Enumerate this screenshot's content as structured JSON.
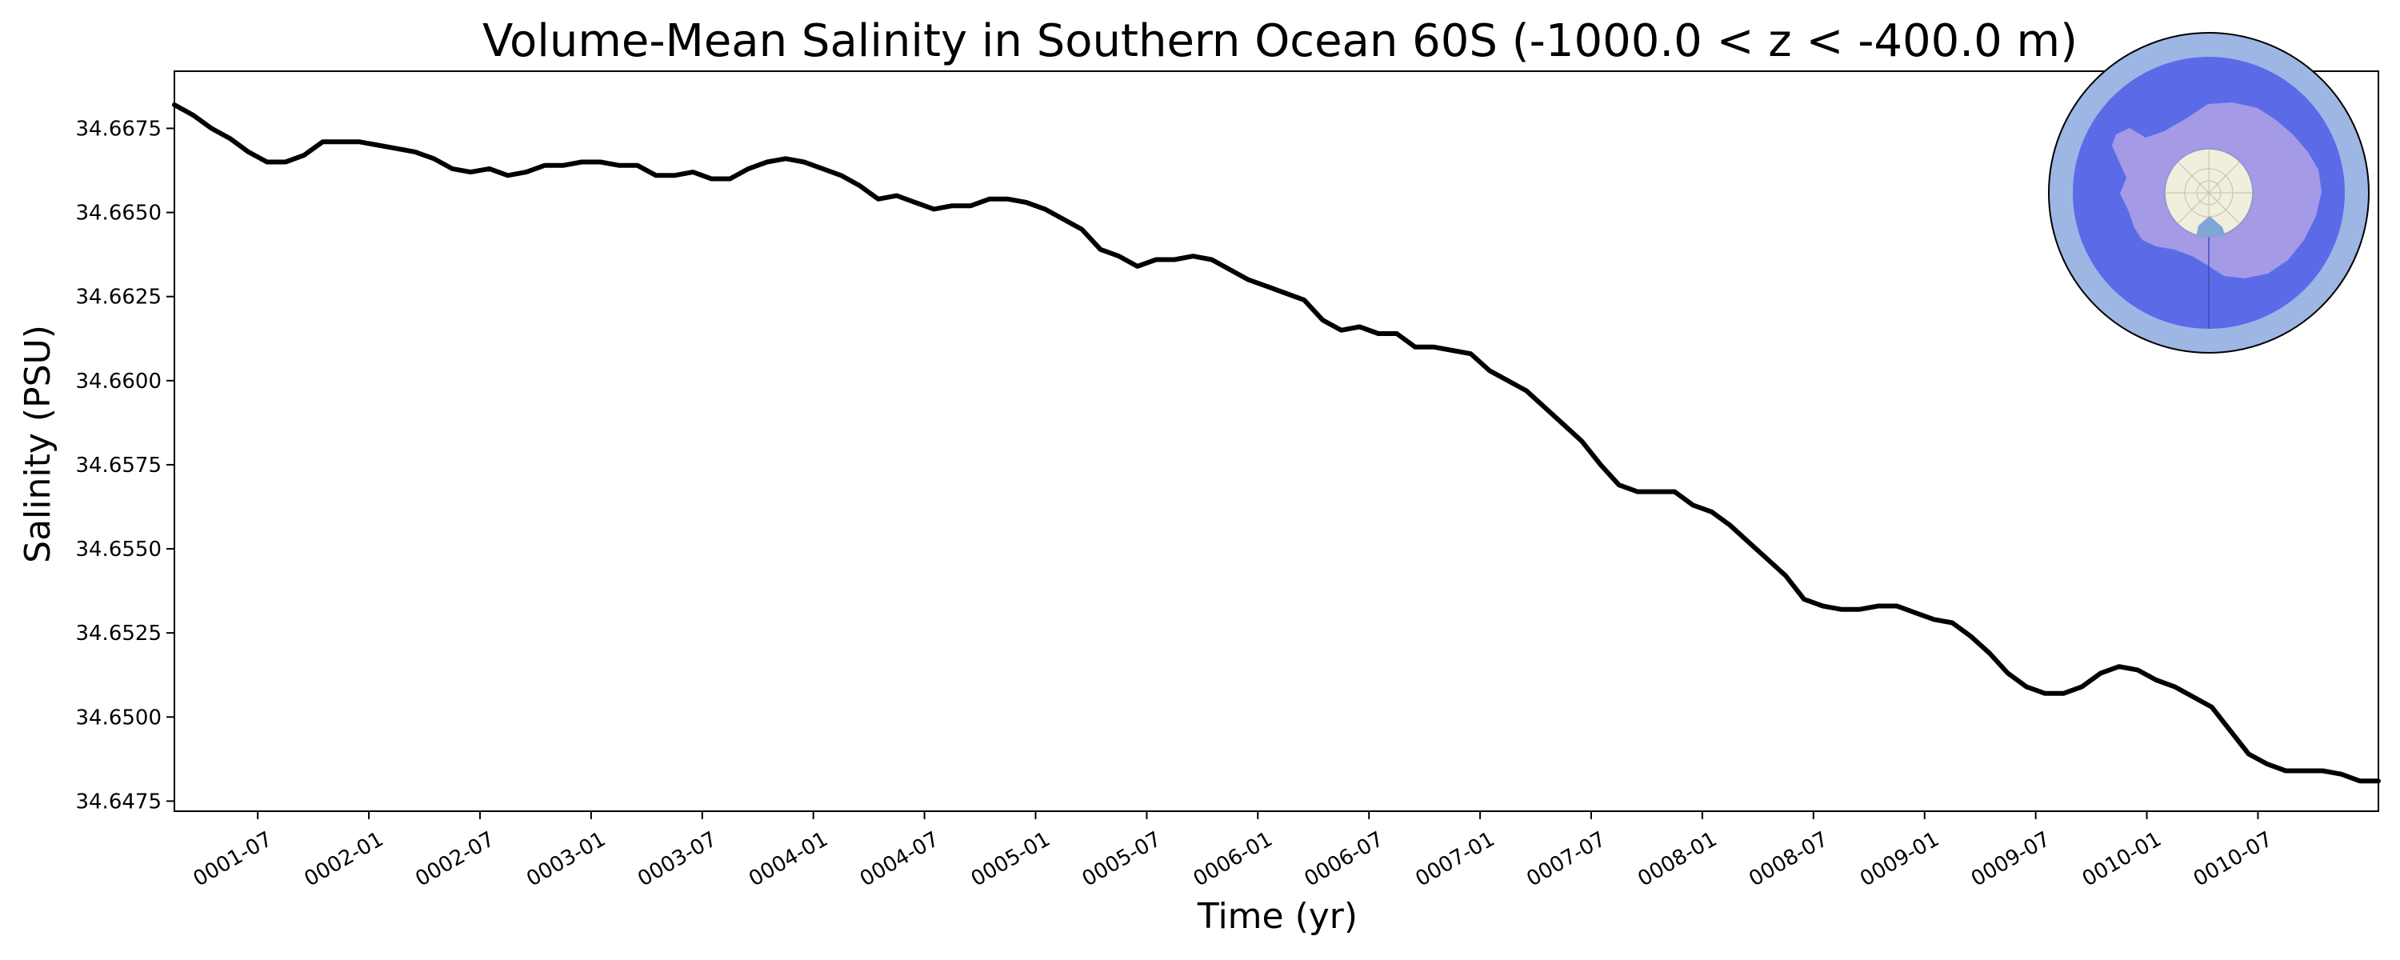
{
  "chart_data": {
    "type": "line",
    "title": "Volume-Mean Salinity in Southern Ocean 60S (-1000.0 < z < -400.0 m)",
    "xlabel": "Time (yr)",
    "ylabel": "Salinity (PSU)",
    "xlim": [
      0.125,
      10.042
    ],
    "ylim": [
      34.6472,
      34.6692
    ],
    "grid": false,
    "x_ticks": [
      {
        "value": 0.5,
        "label": "0001-07"
      },
      {
        "value": 1.0,
        "label": "0002-01"
      },
      {
        "value": 1.5,
        "label": "0002-07"
      },
      {
        "value": 2.0,
        "label": "0003-01"
      },
      {
        "value": 2.5,
        "label": "0003-07"
      },
      {
        "value": 3.0,
        "label": "0004-01"
      },
      {
        "value": 3.5,
        "label": "0004-07"
      },
      {
        "value": 4.0,
        "label": "0005-01"
      },
      {
        "value": 4.5,
        "label": "0005-07"
      },
      {
        "value": 5.0,
        "label": "0006-01"
      },
      {
        "value": 5.5,
        "label": "0006-07"
      },
      {
        "value": 6.0,
        "label": "0007-01"
      },
      {
        "value": 6.5,
        "label": "0007-07"
      },
      {
        "value": 7.0,
        "label": "0008-01"
      },
      {
        "value": 7.5,
        "label": "0008-07"
      },
      {
        "value": 8.0,
        "label": "0009-01"
      },
      {
        "value": 8.5,
        "label": "0009-07"
      },
      {
        "value": 9.0,
        "label": "0010-01"
      },
      {
        "value": 9.5,
        "label": "0010-07"
      }
    ],
    "y_ticks": [
      {
        "value": 34.6475,
        "label": "34.6475"
      },
      {
        "value": 34.65,
        "label": "34.6500"
      },
      {
        "value": 34.6525,
        "label": "34.6525"
      },
      {
        "value": 34.655,
        "label": "34.6550"
      },
      {
        "value": 34.6575,
        "label": "34.6575"
      },
      {
        "value": 34.66,
        "label": "34.6600"
      },
      {
        "value": 34.6625,
        "label": "34.6625"
      },
      {
        "value": 34.665,
        "label": "34.6650"
      },
      {
        "value": 34.6675,
        "label": "34.6675"
      }
    ],
    "series": [
      {
        "color": "#000000",
        "x": [
          0.125,
          0.208,
          0.292,
          0.375,
          0.458,
          0.542,
          0.625,
          0.708,
          0.792,
          0.875,
          0.958,
          1.042,
          1.125,
          1.208,
          1.292,
          1.375,
          1.458,
          1.542,
          1.625,
          1.708,
          1.792,
          1.875,
          1.958,
          2.042,
          2.125,
          2.208,
          2.292,
          2.375,
          2.458,
          2.542,
          2.625,
          2.708,
          2.792,
          2.875,
          2.958,
          3.042,
          3.125,
          3.208,
          3.292,
          3.375,
          3.458,
          3.542,
          3.625,
          3.708,
          3.792,
          3.875,
          3.958,
          4.042,
          4.125,
          4.208,
          4.292,
          4.375,
          4.458,
          4.542,
          4.625,
          4.708,
          4.792,
          4.875,
          4.958,
          5.042,
          5.125,
          5.208,
          5.292,
          5.375,
          5.458,
          5.542,
          5.625,
          5.708,
          5.792,
          5.875,
          5.958,
          6.042,
          6.125,
          6.208,
          6.292,
          6.375,
          6.458,
          6.542,
          6.625,
          6.708,
          6.792,
          6.875,
          6.958,
          7.042,
          7.125,
          7.208,
          7.292,
          7.375,
          7.458,
          7.542,
          7.625,
          7.708,
          7.792,
          7.875,
          7.958,
          8.042,
          8.125,
          8.208,
          8.292,
          8.375,
          8.458,
          8.542,
          8.625,
          8.708,
          8.792,
          8.875,
          8.958,
          9.042,
          9.125,
          9.208,
          9.292,
          9.375,
          9.458,
          9.542,
          9.625,
          9.708,
          9.792,
          9.875,
          9.958,
          10.042
        ],
        "y": [
          34.6682,
          34.6679,
          34.6675,
          34.6672,
          34.6668,
          34.6665,
          34.6665,
          34.6667,
          34.6671,
          34.6671,
          34.6671,
          34.667,
          34.6669,
          34.6668,
          34.6666,
          34.6663,
          34.6662,
          34.6663,
          34.6661,
          34.6662,
          34.6664,
          34.6664,
          34.6665,
          34.6665,
          34.6664,
          34.6664,
          34.6661,
          34.6661,
          34.6662,
          34.666,
          34.666,
          34.6663,
          34.6665,
          34.6666,
          34.6665,
          34.6663,
          34.6661,
          34.6658,
          34.6654,
          34.6655,
          34.6653,
          34.6651,
          34.6652,
          34.6652,
          34.6654,
          34.6654,
          34.6653,
          34.6651,
          34.6648,
          34.6645,
          34.6639,
          34.6637,
          34.6634,
          34.6636,
          34.6636,
          34.6637,
          34.6636,
          34.6633,
          34.663,
          34.6628,
          34.6626,
          34.6624,
          34.6618,
          34.6615,
          34.6616,
          34.6614,
          34.6614,
          34.661,
          34.661,
          34.6609,
          34.6608,
          34.6603,
          34.66,
          34.6597,
          34.6592,
          34.6587,
          34.6582,
          34.6575,
          34.6569,
          34.6567,
          34.6567,
          34.6567,
          34.6563,
          34.6561,
          34.6557,
          34.6552,
          34.6547,
          34.6542,
          34.6535,
          34.6533,
          34.6532,
          34.6532,
          34.6533,
          34.6533,
          34.6531,
          34.6529,
          34.6528,
          34.6524,
          34.6519,
          34.6513,
          34.6509,
          34.6507,
          34.6507,
          34.6509,
          34.6513,
          34.6515,
          34.6514,
          34.6511,
          34.6509,
          34.6506,
          34.6503,
          34.6496,
          34.6489,
          34.6486,
          34.6484,
          34.6484,
          34.6484,
          34.6483,
          34.6481,
          34.6481
        ]
      }
    ]
  },
  "inset_map": {
    "ocean_band_color": "#5b6be8",
    "outer_ring_color": "#9db6e4",
    "land_color": "#a59ae6",
    "pole_cap_color": "#f0eedc"
  }
}
